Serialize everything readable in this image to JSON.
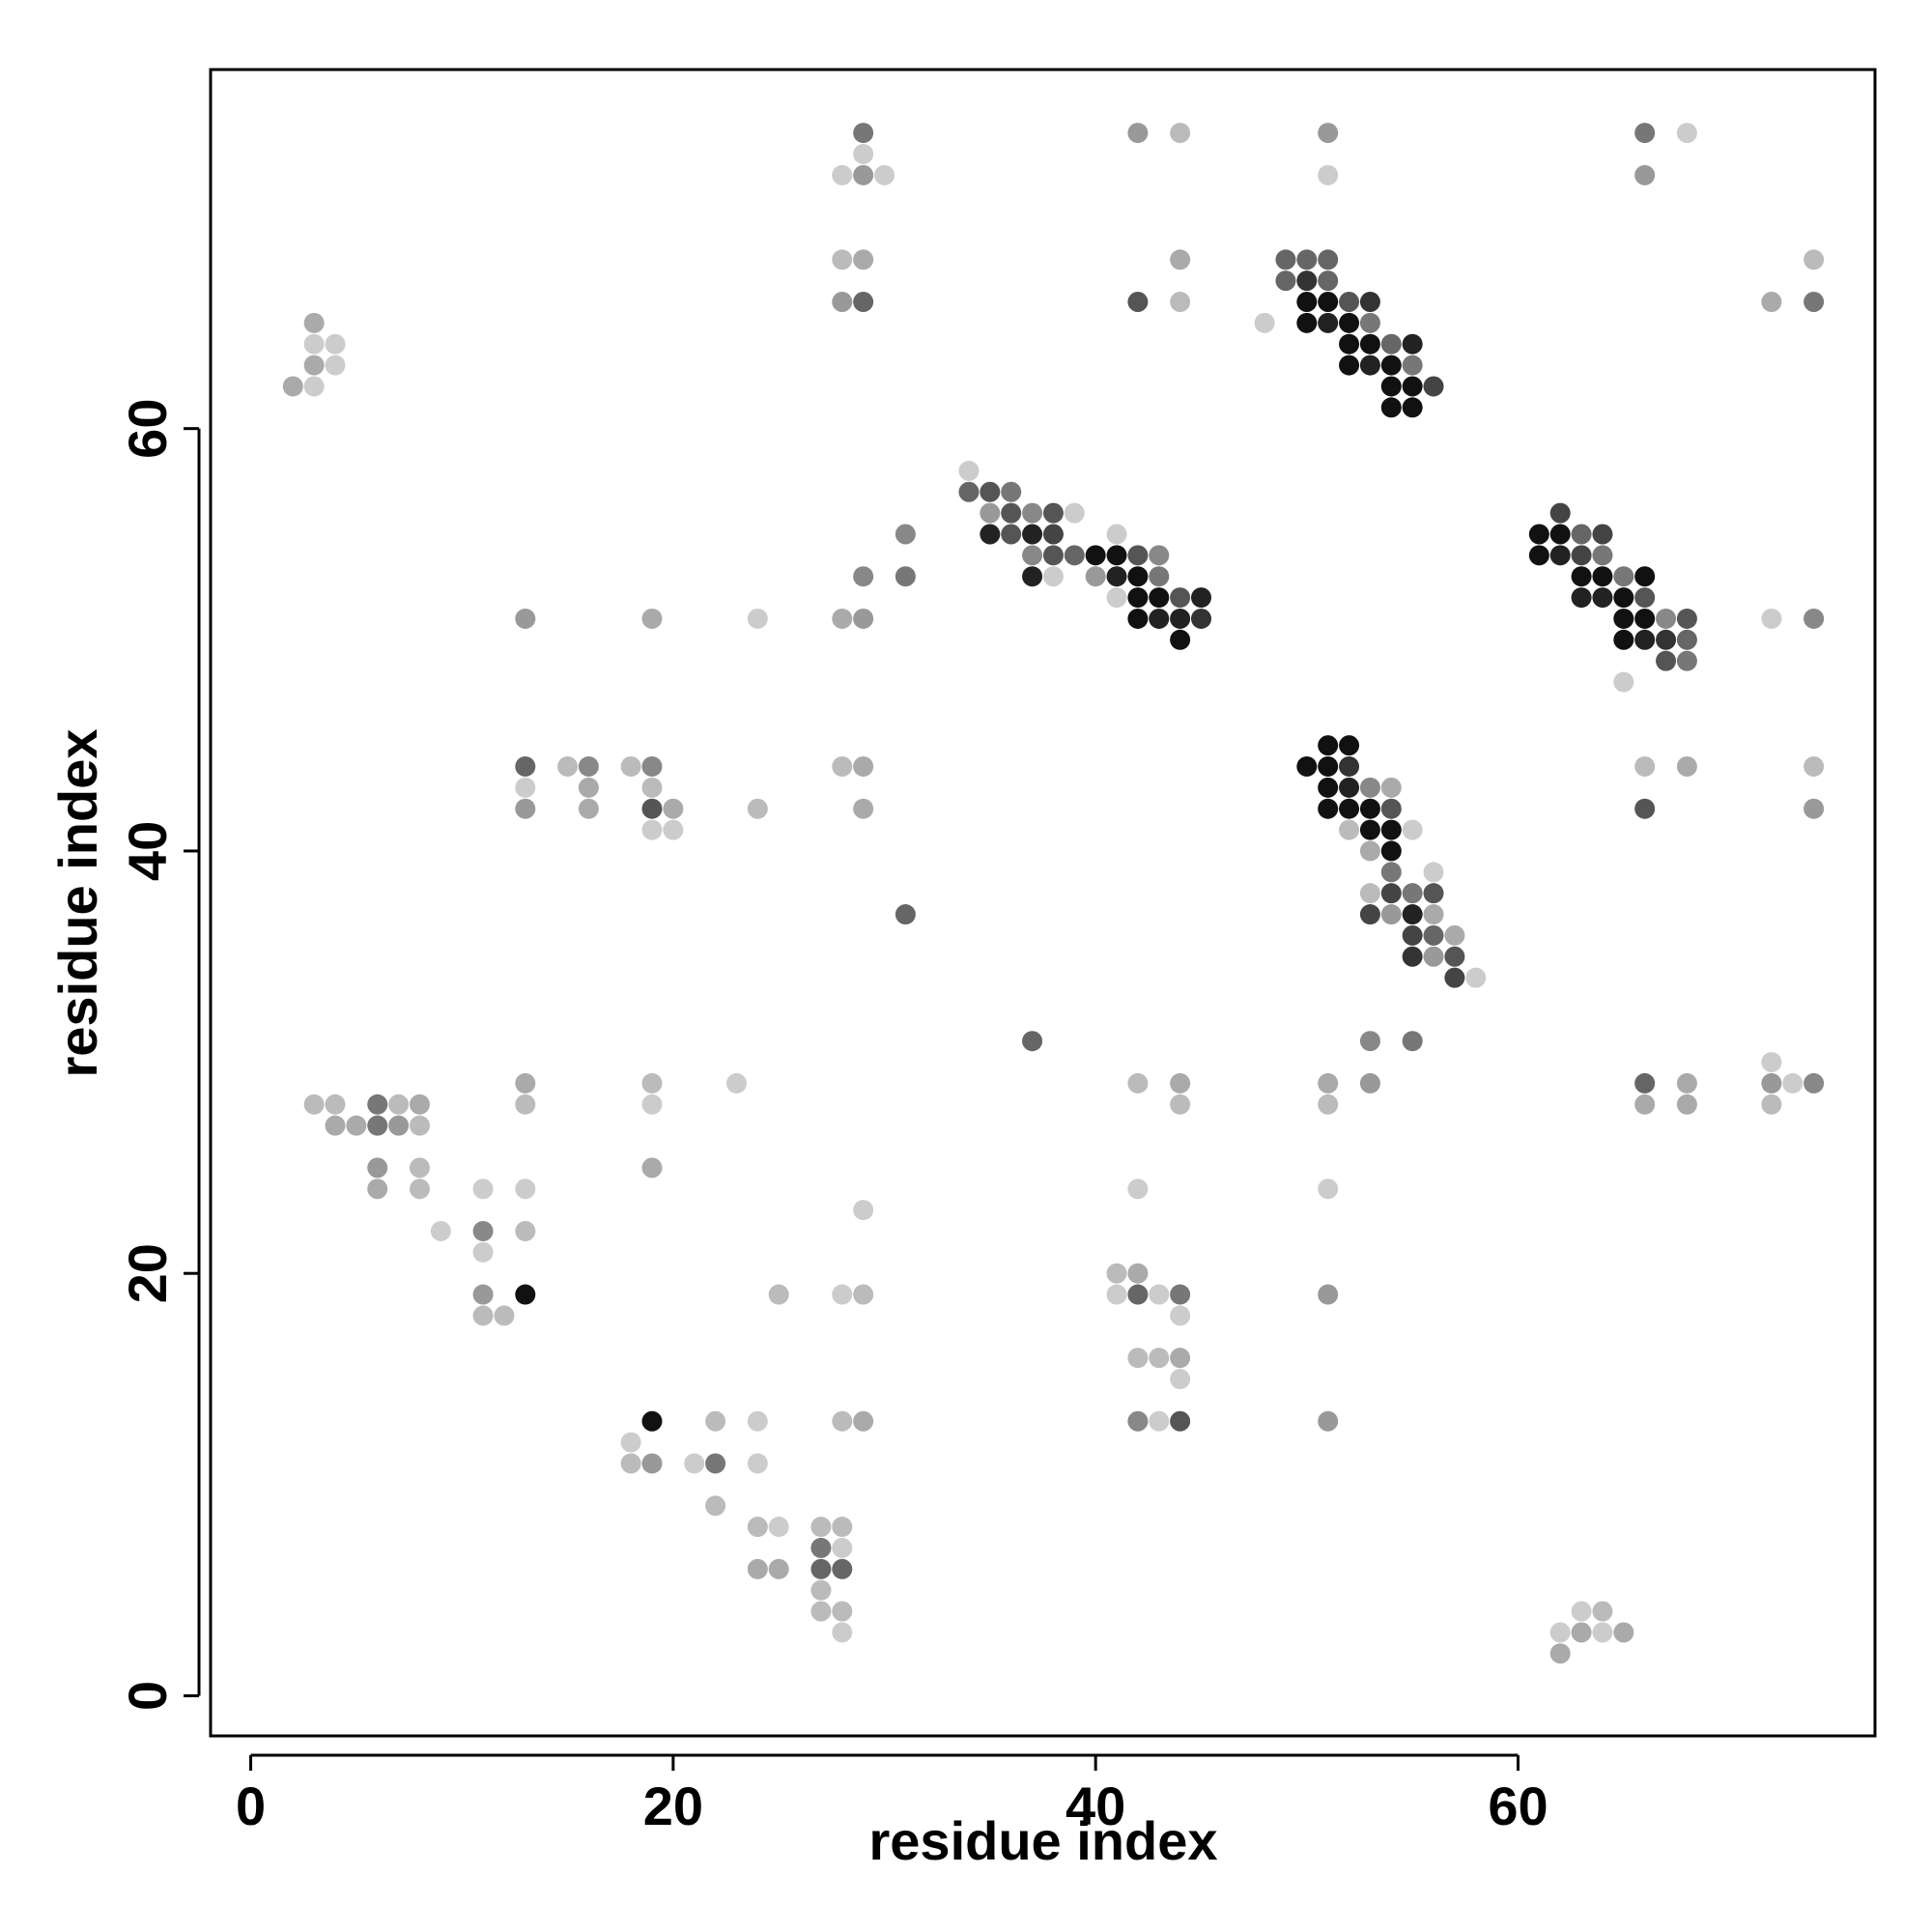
{
  "chart_data": {
    "type": "scatter",
    "x_label": "residue index",
    "y_label": "residue index",
    "xlim": [
      -1.9,
      76.9
    ],
    "ylim": [
      -1.9,
      77
    ],
    "xticks": [
      0,
      20,
      40,
      60
    ],
    "yticks": [
      0,
      20,
      40,
      60
    ],
    "series": [
      {
        "x": [
          29,
          42,
          44,
          51,
          66,
          68,
          29,
          28,
          29,
          30,
          51,
          66,
          28,
          29,
          44,
          49,
          50,
          51,
          74,
          49,
          50,
          51,
          28,
          29,
          42,
          44,
          50,
          51,
          52,
          53,
          72,
          74,
          3,
          48,
          50,
          51,
          52,
          53,
          3,
          4,
          52,
          53,
          54,
          55,
          3,
          4,
          52,
          53,
          54,
          55,
          2,
          3,
          54,
          55,
          56,
          54,
          55,
          34,
          34,
          35,
          36,
          35,
          36,
          37,
          38,
          39,
          62,
          31,
          35,
          36,
          37,
          38,
          41,
          61,
          62,
          63,
          64,
          37,
          38,
          39,
          40,
          41,
          42,
          43,
          61,
          62,
          63,
          64,
          29,
          31,
          37,
          38,
          40,
          41,
          42,
          43,
          63,
          64,
          65,
          66,
          41,
          42,
          43,
          44,
          45,
          63,
          64,
          65,
          66,
          13,
          19,
          24,
          28,
          29,
          42,
          43,
          44,
          45,
          65,
          66,
          67,
          68,
          72,
          74,
          44,
          65,
          66,
          67,
          68,
          67,
          68,
          65,
          51,
          52,
          13,
          15,
          16,
          18,
          19,
          28,
          29,
          50,
          51,
          52,
          66,
          68,
          74,
          13,
          16,
          19,
          51,
          52,
          53,
          54,
          13,
          16,
          19,
          20,
          24,
          29,
          51,
          52,
          53,
          54,
          66,
          74,
          19,
          20,
          52,
          53,
          54,
          55,
          53,
          54,
          54,
          56,
          53,
          54,
          55,
          56,
          31,
          53,
          54,
          55,
          56,
          55,
          56,
          57,
          55,
          56,
          57,
          57,
          58,
          37,
          53,
          55,
          72,
          13,
          19,
          23,
          42,
          44,
          51,
          53,
          66,
          68,
          72,
          73,
          74,
          3,
          4,
          6,
          7,
          8,
          13,
          19,
          44,
          51,
          66,
          68,
          72,
          4,
          5,
          6,
          7,
          8,
          6,
          8,
          19,
          6,
          8,
          11,
          13,
          42,
          51,
          29,
          9,
          11,
          13,
          11,
          41,
          42,
          11,
          13,
          25,
          28,
          29,
          41,
          42,
          43,
          44,
          51,
          11,
          12,
          44,
          42,
          43,
          44,
          44,
          19,
          22,
          24,
          28,
          29,
          42,
          43,
          44,
          51,
          18,
          18,
          19,
          21,
          22,
          24,
          22,
          24,
          25,
          27,
          28,
          27,
          28,
          24,
          25,
          27,
          28,
          27,
          27,
          28,
          63,
          64,
          28,
          62,
          63,
          64,
          65,
          62
        ],
        "values": [
          74,
          74,
          74,
          74,
          74,
          74,
          73,
          72,
          72,
          72,
          72,
          72,
          68,
          68,
          68,
          68,
          68,
          68,
          68,
          67,
          67,
          67,
          66,
          66,
          66,
          66,
          66,
          66,
          66,
          66,
          66,
          66,
          65,
          65,
          65,
          65,
          65,
          65,
          64,
          64,
          64,
          64,
          64,
          64,
          63,
          63,
          63,
          63,
          63,
          63,
          62,
          62,
          62,
          62,
          62,
          61,
          61,
          58,
          57,
          57,
          57,
          56,
          56,
          56,
          56,
          56,
          56,
          55,
          55,
          55,
          55,
          55,
          55,
          55,
          55,
          55,
          55,
          54,
          54,
          54,
          54,
          54,
          54,
          54,
          54,
          54,
          54,
          54,
          53,
          53,
          53,
          53,
          53,
          53,
          53,
          53,
          53,
          53,
          53,
          53,
          52,
          52,
          52,
          52,
          52,
          52,
          52,
          52,
          52,
          51,
          51,
          51,
          51,
          51,
          51,
          51,
          51,
          51,
          51,
          51,
          51,
          51,
          51,
          51,
          50,
          50,
          50,
          50,
          50,
          49,
          49,
          48,
          45,
          45,
          44,
          44,
          44,
          44,
          44,
          44,
          44,
          44,
          44,
          44,
          44,
          44,
          44,
          43,
          43,
          43,
          43,
          43,
          43,
          43,
          42,
          42,
          42,
          42,
          42,
          42,
          42,
          42,
          42,
          42,
          42,
          42,
          41,
          41,
          41,
          41,
          41,
          41,
          40,
          40,
          39,
          39,
          38,
          38,
          38,
          38,
          37,
          37,
          37,
          37,
          37,
          36,
          36,
          36,
          35,
          35,
          35,
          34,
          34,
          31,
          31,
          31,
          30,
          29,
          29,
          29,
          29,
          29,
          29,
          29,
          29,
          29,
          29,
          29,
          29,
          28,
          28,
          28,
          28,
          28,
          28,
          28,
          28,
          28,
          28,
          28,
          28,
          27,
          27,
          27,
          27,
          27,
          25,
          25,
          25,
          24,
          24,
          24,
          24,
          24,
          24,
          23,
          22,
          22,
          22,
          21,
          20,
          20,
          19,
          19,
          19,
          19,
          19,
          19,
          19,
          19,
          19,
          19,
          18,
          18,
          18,
          16,
          16,
          16,
          15,
          13,
          13,
          13,
          13,
          13,
          13,
          13,
          13,
          13,
          12,
          11,
          11,
          11,
          11,
          11,
          9,
          8,
          8,
          8,
          8,
          7,
          7,
          6,
          6,
          6,
          6,
          5,
          4,
          4,
          4,
          4,
          3,
          3,
          3,
          3,
          3,
          2
        ],
        "colors": [
          "#777",
          "#999",
          "#bbb",
          "#999",
          "#777",
          "#ccc",
          "#ccc",
          "#ccc",
          "#999",
          "#ccc",
          "#ccc",
          "#999",
          "#bbb",
          "#aaa",
          "#aaa",
          "#666",
          "#666",
          "#666",
          "#bbb",
          "#666",
          "#333",
          "#666",
          "#999",
          "#666",
          "#555",
          "#bbb",
          "#111",
          "#111",
          "#555",
          "#333",
          "#aaa",
          "#777",
          "#aaa",
          "#ccc",
          "#111",
          "#222",
          "#111",
          "#777",
          "#ccc",
          "#ccc",
          "#111",
          "#111",
          "#666",
          "#222",
          "#aaa",
          "#ccc",
          "#111",
          "#222",
          "#111",
          "#777",
          "#aaa",
          "#ccc",
          "#111",
          "#111",
          "#444",
          "#111",
          "#111",
          "#ccc",
          "#666",
          "#555",
          "#777",
          "#999",
          "#555",
          "#888",
          "#555",
          "#ccc",
          "#444",
          "#888",
          "#222",
          "#555",
          "#222",
          "#444",
          "#ccc",
          "#111",
          "#111",
          "#666",
          "#444",
          "#888",
          "#555",
          "#666",
          "#111",
          "#111",
          "#555",
          "#888",
          "#111",
          "#222",
          "#444",
          "#777",
          "#888",
          "#777",
          "#222",
          "#ccc",
          "#999",
          "#222",
          "#111",
          "#777",
          "#111",
          "#111",
          "#777",
          "#111",
          "#ccc",
          "#111",
          "#111",
          "#555",
          "#222",
          "#222",
          "#222",
          "#111",
          "#555",
          "#999",
          "#aaa",
          "#ccc",
          "#aaa",
          "#999",
          "#111",
          "#222",
          "#222",
          "#333",
          "#111",
          "#111",
          "#888",
          "#555",
          "#ccc",
          "#888",
          "#111",
          "#111",
          "#222",
          "#333",
          "#666",
          "#555",
          "#777",
          "#ccc",
          "#111",
          "#111",
          "#666",
          "#bbb",
          "#888",
          "#bbb",
          "#888",
          "#bbb",
          "#aaa",
          "#111",
          "#111",
          "#333",
          "#bbb",
          "#aaa",
          "#bbb",
          "#ccc",
          "#aaa",
          "#bbb",
          "#111",
          "#222",
          "#888",
          "#aaa",
          "#999",
          "#aaa",
          "#555",
          "#aaa",
          "#bbb",
          "#aaa",
          "#111",
          "#111",
          "#111",
          "#555",
          "#555",
          "#999",
          "#ccc",
          "#ccc",
          "#bbb",
          "#111",
          "#111",
          "#ccc",
          "#aaa",
          "#111",
          "#777",
          "#ccc",
          "#bbb",
          "#444",
          "#777",
          "#555",
          "#666",
          "#444",
          "#999",
          "#222",
          "#aaa",
          "#444",
          "#666",
          "#aaa",
          "#333",
          "#999",
          "#555",
          "#444",
          "#ccc",
          "#666",
          "#888",
          "#777",
          "#ccc",
          "#aaa",
          "#bbb",
          "#ccc",
          "#bbb",
          "#aaa",
          "#aaa",
          "#999",
          "#666",
          "#aaa",
          "#999",
          "#ccc",
          "#888",
          "#bbb",
          "#bbb",
          "#777",
          "#bbb",
          "#aaa",
          "#bbb",
          "#ccc",
          "#bbb",
          "#bbb",
          "#aaa",
          "#aaa",
          "#bbb",
          "#aaa",
          "#aaa",
          "#777",
          "#999",
          "#bbb",
          "#999",
          "#bbb",
          "#aaa",
          "#aaa",
          "#bbb",
          "#ccc",
          "#ccc",
          "#ccc",
          "#ccc",
          "#ccc",
          "#ccc",
          "#888",
          "#bbb",
          "#ccc",
          "#bbb",
          "#aaa",
          "#999",
          "#111",
          "#bbb",
          "#ccc",
          "#bbb",
          "#ccc",
          "#666",
          "#ccc",
          "#777",
          "#999",
          "#bbb",
          "#bbb",
          "#ccc",
          "#bbb",
          "#bbb",
          "#aaa",
          "#ccc",
          "#111",
          "#bbb",
          "#ccc",
          "#bbb",
          "#aaa",
          "#888",
          "#ccc",
          "#555",
          "#999",
          "#ccc",
          "#bbb",
          "#999",
          "#ccc",
          "#777",
          "#ccc",
          "#bbb",
          "#bbb",
          "#ccc",
          "#bbb",
          "#bbb",
          "#777",
          "#ccc",
          "#aaa",
          "#aaa",
          "#666",
          "#666",
          "#bbb",
          "#bbb",
          "#bbb",
          "#ccc",
          "#bbb",
          "#ccc",
          "#ccc",
          "#aaa",
          "#ccc",
          "#aaa",
          "#aaa"
        ]
      }
    ]
  }
}
